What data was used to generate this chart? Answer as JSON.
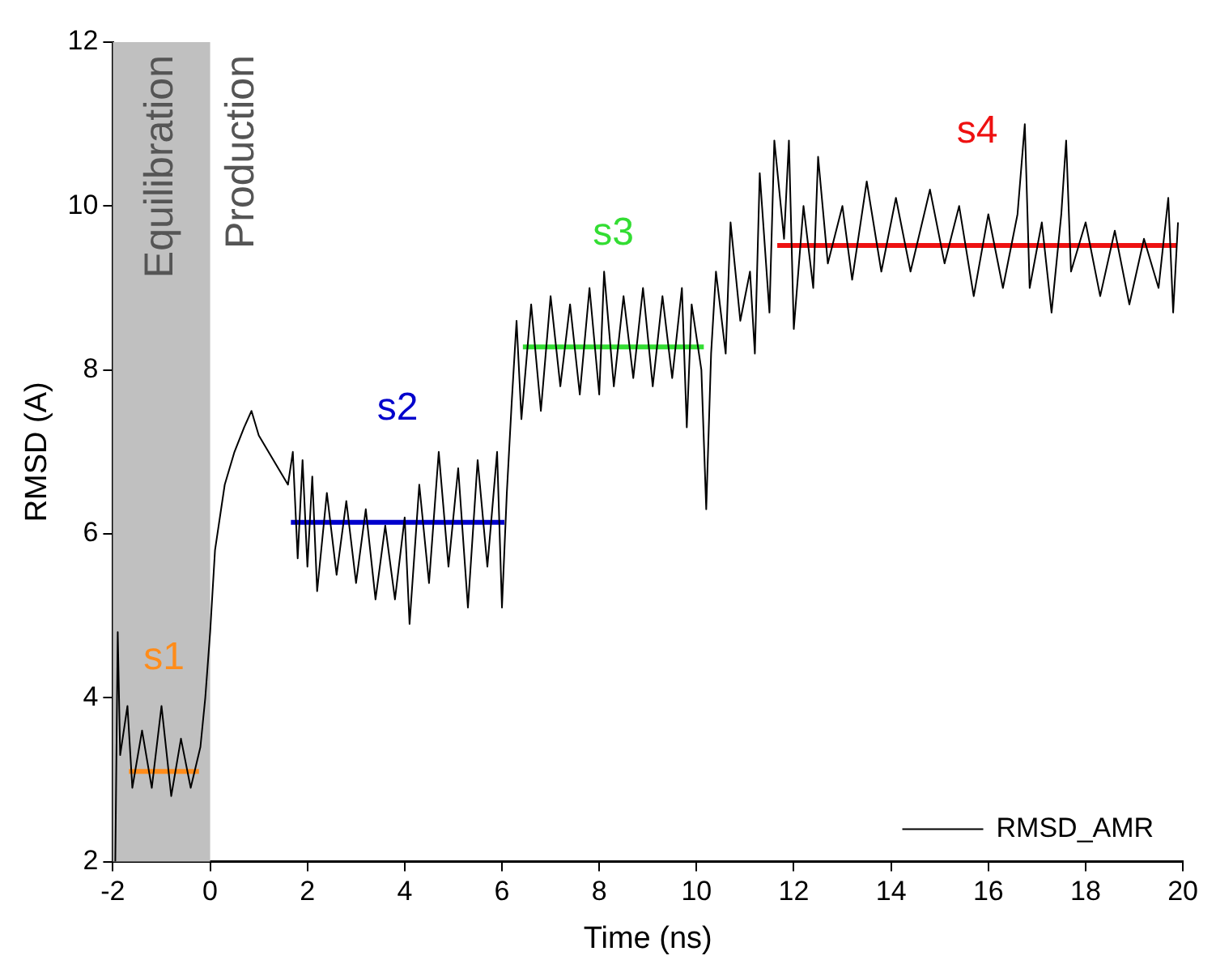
{
  "chart_data": {
    "type": "line",
    "xlabel": "Time (ns)",
    "ylabel": "RMSD (A)",
    "xlim": [
      -2,
      20
    ],
    "xticks": [
      -2,
      0,
      2,
      4,
      6,
      8,
      10,
      12,
      14,
      16,
      18,
      20
    ],
    "ylim": [
      2,
      12
    ],
    "yticks": [
      2,
      4,
      6,
      8,
      10,
      12
    ],
    "grid": false,
    "legend": "bottom right",
    "marker": "none",
    "line_style": "solid",
    "bands": [
      {
        "axis": "x",
        "from": -2,
        "to": 0,
        "label": "Equilibration",
        "color": "#c0c0c0"
      }
    ],
    "annotations": [
      "Production"
    ],
    "x": [
      -1.95,
      -1.9,
      -1.85,
      -1.7,
      -1.6,
      -1.4,
      -1.2,
      -1.0,
      -0.8,
      -0.6,
      -0.4,
      -0.2,
      -0.1,
      0,
      0.1,
      0.3,
      0.5,
      0.7,
      0.85,
      1.0,
      1.6,
      1.7,
      1.8,
      1.9,
      2.0,
      2.1,
      2.2,
      2.4,
      2.6,
      2.8,
      3.0,
      3.2,
      3.4,
      3.6,
      3.8,
      4.0,
      4.1,
      4.3,
      4.5,
      4.7,
      4.9,
      5.1,
      5.3,
      5.5,
      5.7,
      5.9,
      6.0,
      6.1,
      6.2,
      6.3,
      6.4,
      6.6,
      6.8,
      7.0,
      7.2,
      7.4,
      7.6,
      7.8,
      8.0,
      8.1,
      8.3,
      8.5,
      8.7,
      8.9,
      9.1,
      9.3,
      9.5,
      9.7,
      9.8,
      9.9,
      10.1,
      10.2,
      10.3,
      10.4,
      10.6,
      10.7,
      10.9,
      11.1,
      11.2,
      11.3,
      11.5,
      11.6,
      11.8,
      11.9,
      12.0,
      12.2,
      12.4,
      12.5,
      12.7,
      13.0,
      13.2,
      13.5,
      13.8,
      14.1,
      14.4,
      14.8,
      15.1,
      15.4,
      15.7,
      16.0,
      16.3,
      16.6,
      16.75,
      16.85,
      17.1,
      17.3,
      17.5,
      17.6,
      17.7,
      18.0,
      18.3,
      18.6,
      18.9,
      19.2,
      19.5,
      19.7,
      19.8,
      19.9
    ],
    "series": [
      {
        "name": "RMSD_AMR",
        "color": "#000000",
        "values": [
          2.0,
          4.8,
          3.3,
          3.9,
          2.9,
          3.6,
          2.9,
          3.9,
          2.8,
          3.5,
          2.9,
          3.4,
          4.0,
          4.8,
          5.8,
          6.6,
          7.0,
          7.3,
          7.5,
          7.2,
          6.6,
          7.0,
          5.7,
          6.9,
          5.6,
          6.7,
          5.3,
          6.5,
          5.5,
          6.4,
          5.4,
          6.3,
          5.2,
          6.1,
          5.2,
          6.2,
          4.9,
          6.6,
          5.4,
          7.0,
          5.6,
          6.8,
          5.1,
          6.9,
          5.6,
          7.0,
          5.1,
          6.5,
          7.6,
          8.6,
          7.4,
          8.8,
          7.5,
          8.9,
          7.8,
          8.8,
          7.7,
          9.0,
          7.7,
          9.2,
          7.8,
          8.9,
          7.9,
          9.0,
          7.8,
          8.9,
          7.9,
          9.0,
          7.3,
          8.8,
          8.0,
          6.3,
          8.2,
          9.2,
          8.2,
          9.8,
          8.6,
          9.2,
          8.2,
          10.4,
          8.7,
          10.8,
          9.6,
          10.8,
          8.5,
          10.0,
          9.0,
          10.6,
          9.3,
          10.0,
          9.1,
          10.3,
          9.2,
          10.1,
          9.2,
          10.2,
          9.3,
          10.0,
          8.9,
          9.9,
          9.0,
          9.9,
          11.0,
          9.0,
          9.8,
          8.7,
          9.9,
          10.8,
          9.2,
          9.8,
          8.9,
          9.7,
          8.8,
          9.6,
          9.0,
          10.1,
          8.7,
          9.8
        ]
      },
      {
        "name": "s1",
        "color": "#ff8c1a",
        "x": [
          -1.67,
          -0.23
        ],
        "values": [
          3.1,
          3.1
        ]
      },
      {
        "name": "s2",
        "color": "#0000cc",
        "x": [
          1.66,
          6.05
        ],
        "values": [
          6.14,
          6.14
        ]
      },
      {
        "name": "s3",
        "color": "#33dd33",
        "x": [
          6.43,
          10.15
        ],
        "values": [
          8.28,
          8.28
        ]
      },
      {
        "name": "s4",
        "color": "#ee1111",
        "x": [
          11.66,
          19.88
        ],
        "values": [
          9.52,
          9.52
        ]
      }
    ]
  }
}
